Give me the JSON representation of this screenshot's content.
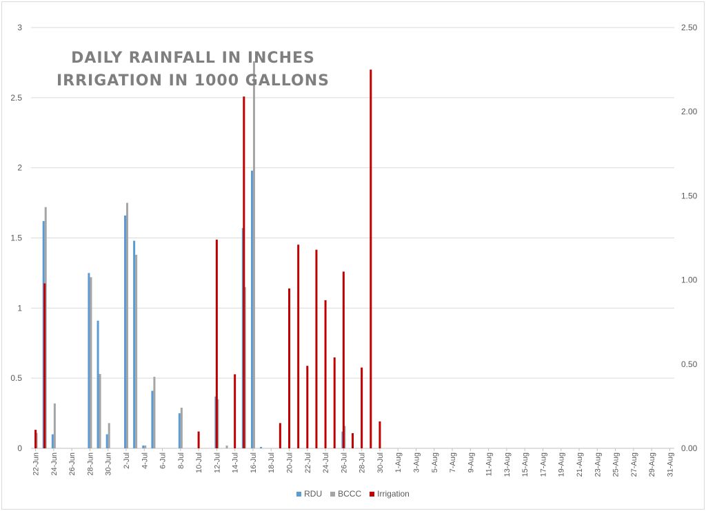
{
  "chart_data": {
    "type": "bar",
    "title_lines": [
      "DAILY RAINFALL IN INCHES",
      "IRRIGATION IN 1000 GALLONS"
    ],
    "categories": [
      "22-Jun",
      "23-Jun",
      "24-Jun",
      "25-Jun",
      "26-Jun",
      "27-Jun",
      "28-Jun",
      "29-Jun",
      "30-Jun",
      "1-Jul",
      "2-Jul",
      "3-Jul",
      "4-Jul",
      "5-Jul",
      "6-Jul",
      "7-Jul",
      "8-Jul",
      "9-Jul",
      "10-Jul",
      "11-Jul",
      "12-Jul",
      "13-Jul",
      "14-Jul",
      "15-Jul",
      "16-Jul",
      "17-Jul",
      "18-Jul",
      "19-Jul",
      "20-Jul",
      "21-Jul",
      "22-Jul",
      "23-Jul",
      "24-Jul",
      "25-Jul",
      "26-Jul",
      "27-Jul",
      "28-Jul",
      "29-Jul",
      "30-Jul",
      "31-Jul",
      "1-Aug",
      "2-Aug",
      "3-Aug",
      "4-Aug",
      "5-Aug",
      "6-Aug",
      "7-Aug",
      "8-Aug",
      "9-Aug",
      "10-Aug",
      "11-Aug",
      "12-Aug",
      "13-Aug",
      "14-Aug",
      "15-Aug",
      "16-Aug",
      "17-Aug",
      "18-Aug",
      "19-Aug",
      "20-Aug",
      "21-Aug",
      "22-Aug",
      "23-Aug",
      "24-Aug",
      "25-Aug",
      "26-Aug",
      "27-Aug",
      "28-Aug",
      "29-Aug",
      "30-Aug",
      "31-Aug"
    ],
    "tick_label_every": 2,
    "series": [
      {
        "name": "RDU",
        "axis": "left",
        "color": "#5b9bd5",
        "values": [
          0,
          1.62,
          0.1,
          0,
          0,
          0,
          1.25,
          0.91,
          0.1,
          0,
          1.66,
          1.48,
          0.02,
          0.41,
          0,
          0,
          0.25,
          0,
          0,
          0,
          0.37,
          0,
          0,
          1.57,
          1.98,
          0.01,
          0,
          0,
          0,
          0,
          0,
          0,
          0,
          0,
          0.12,
          0,
          0,
          0,
          0,
          0,
          0,
          0,
          0,
          0,
          0,
          0,
          0,
          0,
          0,
          0,
          0,
          0,
          0,
          0,
          0,
          0,
          0,
          0,
          0,
          0,
          0,
          0,
          0,
          0,
          0,
          0,
          0,
          0,
          0,
          0,
          0
        ]
      },
      {
        "name": "BCCC",
        "axis": "left",
        "color": "#a5a5a5",
        "values": [
          0.11,
          1.72,
          0.32,
          0,
          0,
          0,
          1.22,
          0.53,
          0.18,
          0,
          1.75,
          1.38,
          0.02,
          0.51,
          0,
          0,
          0.29,
          0,
          0,
          0,
          0.35,
          0.02,
          0,
          1.15,
          2.76,
          0,
          0,
          0,
          0,
          0,
          0,
          0,
          0,
          0,
          0.16,
          0,
          0,
          0,
          0,
          0,
          0,
          0,
          0,
          0,
          0,
          0,
          0,
          0,
          0,
          0,
          0,
          0,
          0,
          0,
          0,
          0,
          0,
          0,
          0,
          0,
          0,
          0,
          0,
          0,
          0,
          0,
          0,
          0,
          0,
          0,
          0
        ]
      },
      {
        "name": "Irrigation",
        "axis": "right",
        "color": "#c00000",
        "values": [
          0.11,
          0.98,
          0,
          0,
          0,
          0,
          0,
          0,
          0,
          0,
          0,
          0,
          0,
          0,
          0,
          0,
          0,
          0,
          0.1,
          0,
          1.24,
          0,
          0.44,
          2.09,
          0,
          0,
          0,
          0.15,
          0.95,
          1.21,
          0.49,
          1.18,
          0.88,
          0.54,
          1.05,
          0.09,
          0.48,
          2.25,
          0.16,
          0,
          0,
          0,
          0,
          0,
          0,
          0,
          0,
          0,
          0,
          0,
          0,
          0,
          0,
          0,
          0,
          0,
          0,
          0,
          0,
          0,
          0,
          0,
          0,
          0,
          0,
          0,
          0,
          0,
          0,
          0,
          0
        ]
      }
    ],
    "y_left": {
      "range": [
        0,
        3
      ],
      "ticks": [
        "0",
        "0.5",
        "1",
        "1.5",
        "2",
        "2.5",
        "3"
      ]
    },
    "y_right": {
      "range": [
        0,
        2.5
      ],
      "ticks": [
        "0.00",
        "0.50",
        "1.00",
        "1.50",
        "2.00",
        "2.50"
      ]
    },
    "grid": true,
    "legend_placement": "bottom"
  }
}
